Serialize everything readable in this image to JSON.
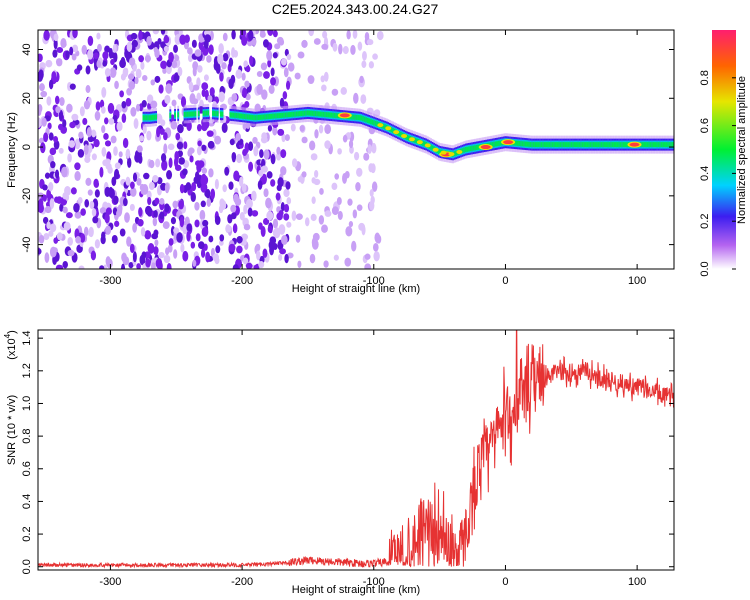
{
  "chart_data": [
    {
      "type": "heatmap",
      "title": "C2E5.2024.343.00.24.G27",
      "xlabel": "Height of straight line (km)",
      "ylabel": "Frequency (Hz)",
      "xlim": [
        -355,
        128
      ],
      "ylim": [
        -50,
        48
      ],
      "x_ticks": [
        "-300",
        "-200",
        "-100",
        "0",
        "100"
      ],
      "x_tick_values": [
        -300,
        -200,
        -100,
        0,
        100
      ],
      "y_ticks": [
        "-40",
        "-20",
        "0",
        "20",
        "40"
      ],
      "y_tick_values": [
        -40,
        -20,
        0,
        20,
        40
      ],
      "colorbar": {
        "label": "Normalized spectral amplitude",
        "ticks": [
          "0.0",
          "0.2",
          "0.4",
          "0.6",
          "0.8"
        ],
        "tick_values": [
          0,
          0.2,
          0.4,
          0.6,
          0.8
        ],
        "range": [
          0,
          1
        ],
        "colors": [
          "#ffffff",
          "#9932f0",
          "#1e1ef0",
          "#00e6ff",
          "#00f032",
          "#f0e600",
          "#ff6400",
          "#ff1e64"
        ]
      },
      "ridge": {
        "x": [
          -270,
          -255,
          -225,
          -205,
          -190,
          -170,
          -150,
          -130,
          -110,
          -90,
          -75,
          -60,
          -50,
          -40,
          -30,
          -20,
          -10,
          0,
          20,
          50,
          80,
          100,
          128
        ],
        "y": [
          12,
          13,
          14,
          13,
          12,
          13,
          14,
          13,
          12,
          8,
          4,
          1,
          -2,
          -3,
          -1,
          0,
          1,
          2,
          1,
          1,
          1,
          1,
          1
        ]
      },
      "hot_spots": [
        {
          "x": -122,
          "y": 13
        },
        {
          "x": -45,
          "y": -3
        },
        {
          "x": -15,
          "y": 0
        },
        {
          "x": 2,
          "y": 2
        },
        {
          "x": 98,
          "y": 1
        }
      ]
    },
    {
      "type": "line",
      "xlabel": "Height of straight line (km)",
      "ylabel": "SNR (10 * v/v)",
      "y_exponent": "(x10",
      "y_exponent_power": "4",
      "y_exponent_close": ")",
      "xlim": [
        -355,
        128
      ],
      "ylim": [
        -0.02,
        1.45
      ],
      "x_ticks": [
        "-300",
        "-200",
        "-100",
        "0",
        "100"
      ],
      "x_tick_values": [
        -300,
        -200,
        -100,
        0,
        100
      ],
      "y_ticks": [
        "0.0",
        "0.2",
        "0.4",
        "0.6",
        "0.8",
        "1.0",
        "1.2",
        "1.4"
      ],
      "y_tick_values": [
        0,
        0.2,
        0.4,
        0.6,
        0.8,
        1.0,
        1.2,
        1.4
      ],
      "color": "#e63232",
      "series": [
        {
          "x": [
            -355,
            -300,
            -250,
            -200,
            -170,
            -160,
            -150,
            -130,
            -110,
            -100,
            -90,
            -80,
            -72,
            -65,
            -60,
            -55,
            -50,
            -45,
            -40,
            -35,
            -30,
            -25,
            -20,
            -15,
            -10,
            -5,
            0,
            5,
            10,
            15,
            20,
            30,
            40,
            50,
            60,
            70,
            80,
            90,
            100,
            110,
            120,
            128
          ],
          "y": [
            0.01,
            0.01,
            0.01,
            0.01,
            0.02,
            0.03,
            0.04,
            0.03,
            0.02,
            0.02,
            0.03,
            0.06,
            0.12,
            0.25,
            0.3,
            0.22,
            0.18,
            0.15,
            0.12,
            0.1,
            0.2,
            0.45,
            0.62,
            0.7,
            0.75,
            0.85,
            0.95,
            0.92,
            1.0,
            1.05,
            1.1,
            1.15,
            1.2,
            1.18,
            1.2,
            1.16,
            1.14,
            1.12,
            1.1,
            1.08,
            1.05,
            1.03
          ]
        }
      ]
    }
  ]
}
